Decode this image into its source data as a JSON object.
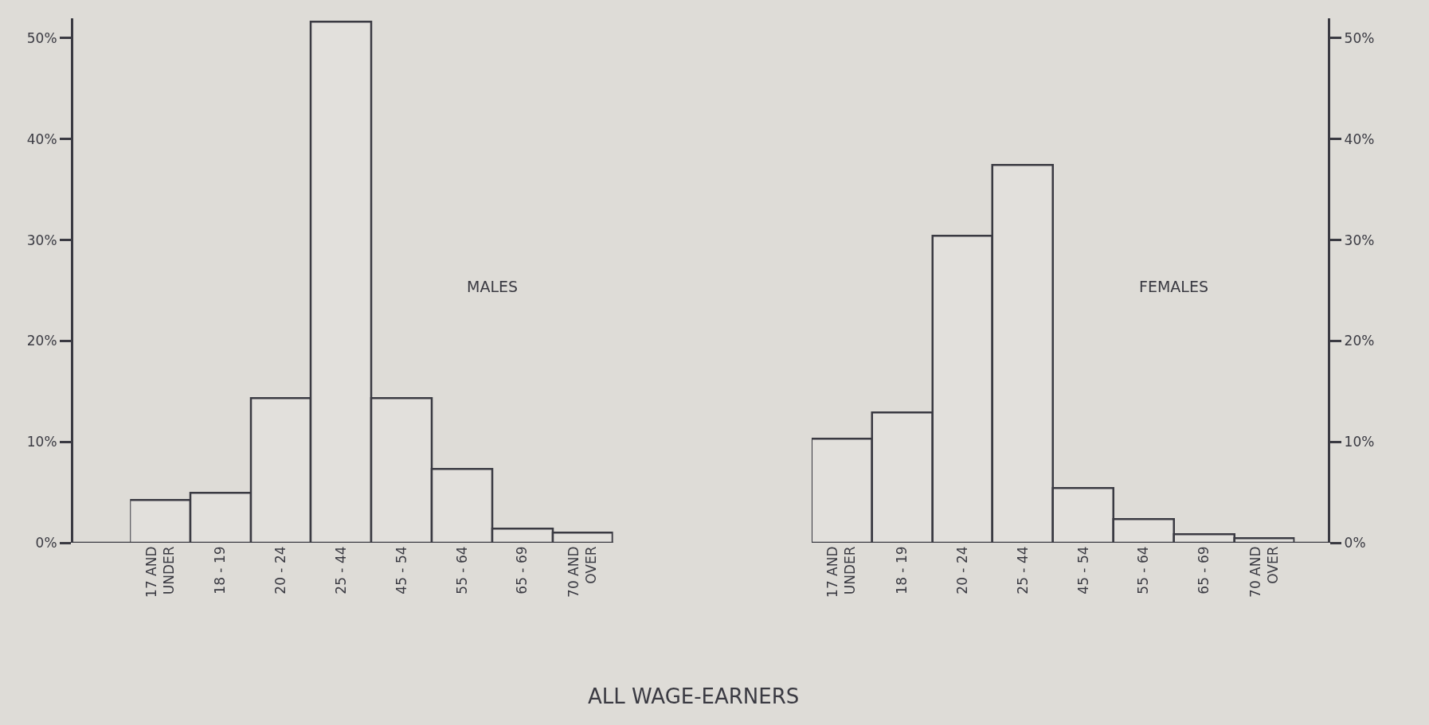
{
  "chart_data": [
    {
      "type": "bar",
      "categories": [
        "17 AND\nUNDER",
        "18 - 19",
        "20 - 24",
        "25 - 44",
        "45 - 54",
        "55 - 64",
        "65 - 69",
        "70 AND\nOVER"
      ],
      "series": [
        {
          "color": "#e2e0dc",
          "values": [
            4.2,
            4.9,
            14.3,
            51.6,
            14.3,
            7.3,
            1.4,
            1.0
          ]
        }
      ],
      "ylim": [
        0,
        52
      ],
      "yticks": [
        {
          "value": 0,
          "label": "0%"
        },
        {
          "value": 10,
          "label": "10%"
        },
        {
          "value": 20,
          "label": "20%"
        },
        {
          "value": 30,
          "label": "30%"
        },
        {
          "value": 40,
          "label": "40%"
        },
        {
          "value": 50,
          "label": "50%"
        }
      ],
      "annotations": [
        "MALES",
        "ALL WAGE-EARNERS"
      ]
    },
    {
      "type": "bar",
      "categories": [
        "17 AND\nUNDER",
        "18 - 19",
        "20 - 24",
        "25 - 44",
        "45 - 54",
        "55 - 64",
        "65 - 69",
        "70 AND\nOVER"
      ],
      "series": [
        {
          "color": "#e2e0dc",
          "axis": "y2",
          "values": [
            10.3,
            12.9,
            30.4,
            37.4,
            5.4,
            2.3,
            0.8,
            0.4
          ]
        }
      ],
      "y2lim": [
        0,
        52
      ],
      "y2ticks": [
        {
          "value": 0,
          "label": "0%"
        },
        {
          "value": 10,
          "label": "10%"
        },
        {
          "value": 20,
          "label": "20%"
        },
        {
          "value": 30,
          "label": "30%"
        },
        {
          "value": 40,
          "label": "40%"
        },
        {
          "value": 50,
          "label": "50%"
        }
      ],
      "annotations": [
        "FEMALES"
      ]
    }
  ]
}
